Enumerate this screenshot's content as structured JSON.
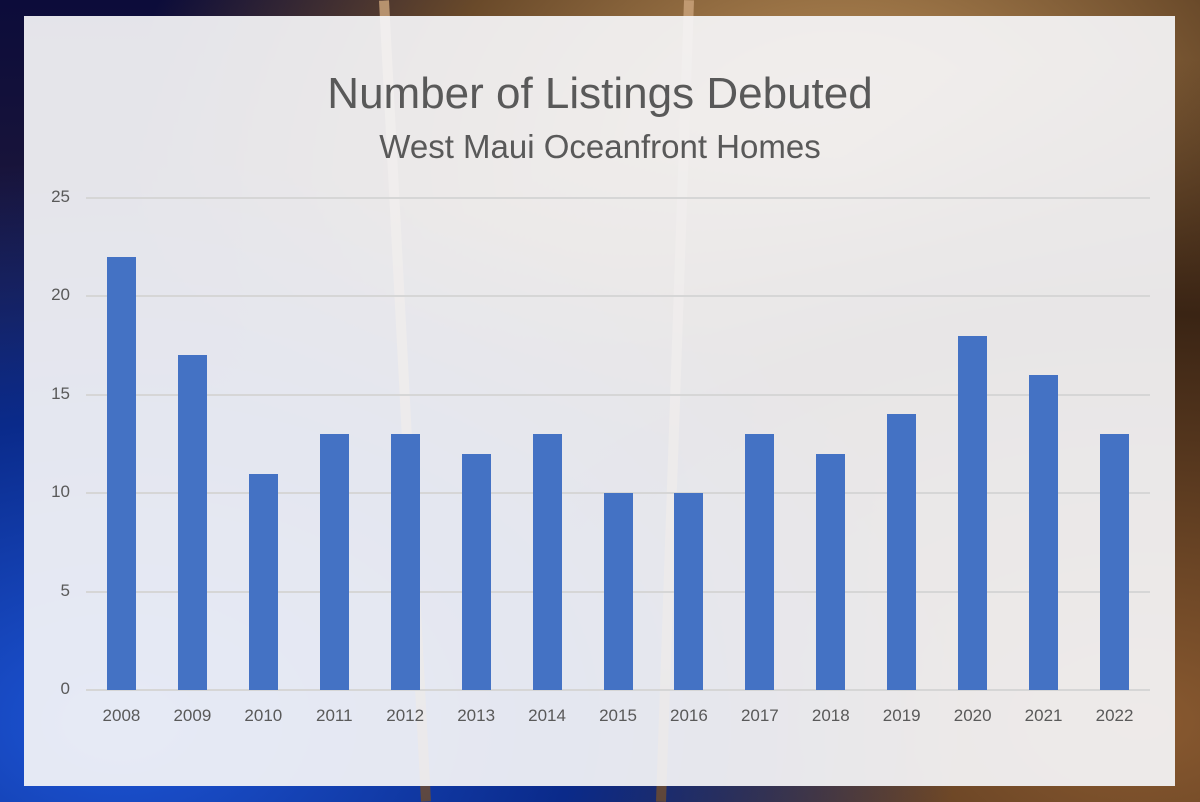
{
  "chart_data": {
    "type": "bar",
    "title": "Number of Listings Debuted",
    "subtitle": "West Maui Oceanfront Homes",
    "xlabel": "",
    "ylabel": "",
    "categories": [
      "2008",
      "2009",
      "2010",
      "2011",
      "2012",
      "2013",
      "2014",
      "2015",
      "2016",
      "2017",
      "2018",
      "2019",
      "2020",
      "2021",
      "2022"
    ],
    "values": [
      22,
      17,
      11,
      13,
      13,
      12,
      13,
      10,
      10,
      13,
      12,
      14,
      18,
      16,
      13
    ],
    "ylim": [
      0,
      25
    ],
    "yticks": [
      "0",
      "5",
      "10",
      "15",
      "20",
      "25"
    ],
    "grid": true,
    "legend": "none",
    "bar_color": "#4472c4"
  }
}
